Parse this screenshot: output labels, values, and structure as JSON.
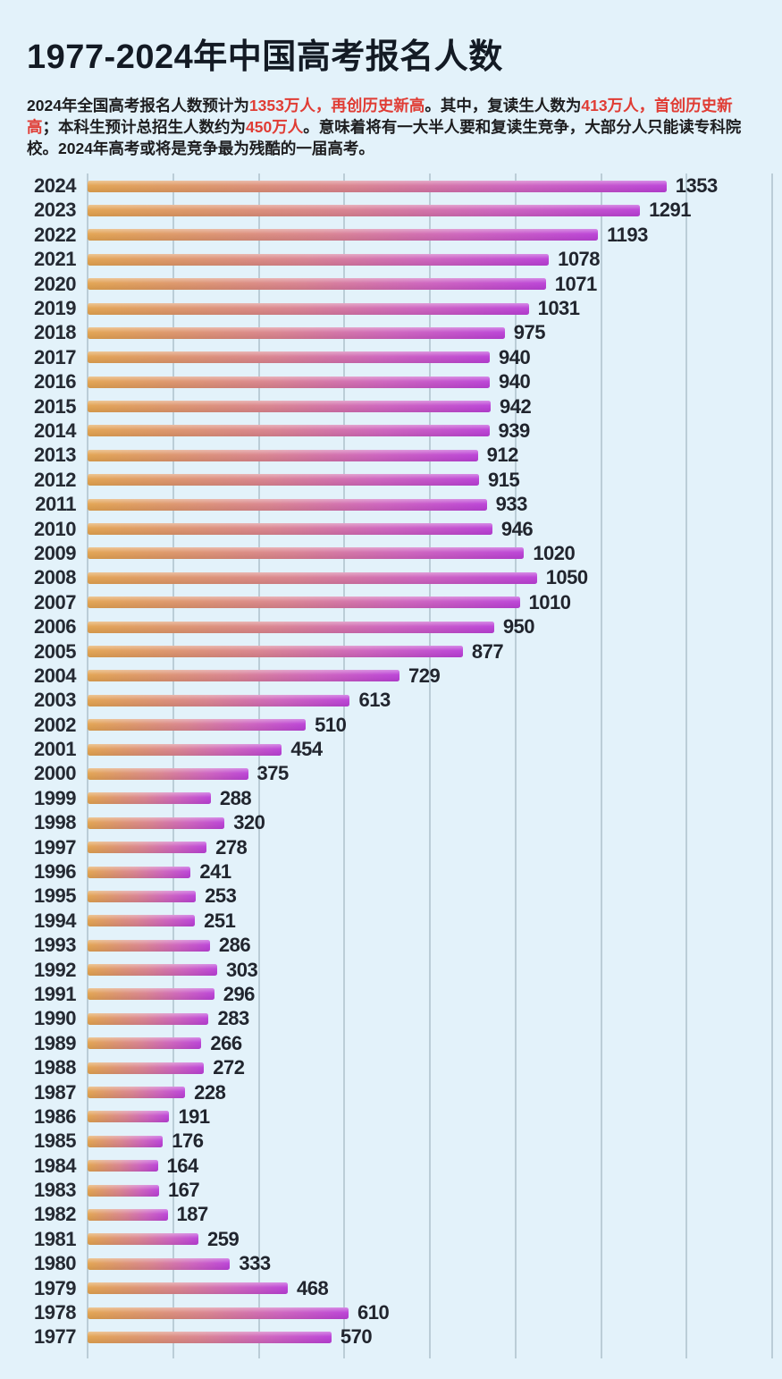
{
  "page": {
    "background_color": "#e3f2fa",
    "title": "1977-2024年中国高考报名人数",
    "subtitle_segments": [
      {
        "text": "2024年全国高考报名人数预计为",
        "red": false
      },
      {
        "text": "1353万人，再创历史新高",
        "red": true
      },
      {
        "text": "。其中，复读生人数为",
        "red": false
      },
      {
        "text": "413万人，首创历史新高",
        "red": true
      },
      {
        "text": "；本科生预计总招生人数约为",
        "red": false
      },
      {
        "text": "450万人",
        "red": true
      },
      {
        "text": "。意味着将有一大半人要和复读生竞争，大部分人只能读专科院校。2024年高考或将是竞争最为残酷的一届高考。",
        "red": false
      }
    ],
    "highlight_color": "#e03c34",
    "gridline_color": "#9aaeb9",
    "label_color": "#21252e"
  },
  "chart_data": {
    "type": "bar",
    "orientation": "horizontal",
    "title": "1977-2024年中国高考报名人数",
    "unit": "万人",
    "grid": true,
    "legend": "none",
    "xlim": [
      0,
      1600
    ],
    "gridline_step": 200,
    "bar_gradient": [
      "#e2a24e",
      "#d9818e",
      "#ba3ed6"
    ],
    "categories": [
      2024,
      2023,
      2022,
      2021,
      2020,
      2019,
      2018,
      2017,
      2016,
      2015,
      2014,
      2013,
      2012,
      2011,
      2010,
      2009,
      2008,
      2007,
      2006,
      2005,
      2004,
      2003,
      2002,
      2001,
      2000,
      1999,
      1998,
      1997,
      1996,
      1995,
      1994,
      1993,
      1992,
      1991,
      1990,
      1989,
      1988,
      1987,
      1986,
      1985,
      1984,
      1983,
      1982,
      1981,
      1980,
      1979,
      1978,
      1977
    ],
    "values": [
      1353,
      1291,
      1193,
      1078,
      1071,
      1031,
      975,
      940,
      940,
      942,
      939,
      912,
      915,
      933,
      946,
      1020,
      1050,
      1010,
      950,
      877,
      729,
      613,
      510,
      454,
      375,
      288,
      320,
      278,
      241,
      253,
      251,
      286,
      303,
      296,
      283,
      266,
      272,
      228,
      191,
      176,
      164,
      167,
      187,
      259,
      333,
      468,
      610,
      570
    ]
  }
}
